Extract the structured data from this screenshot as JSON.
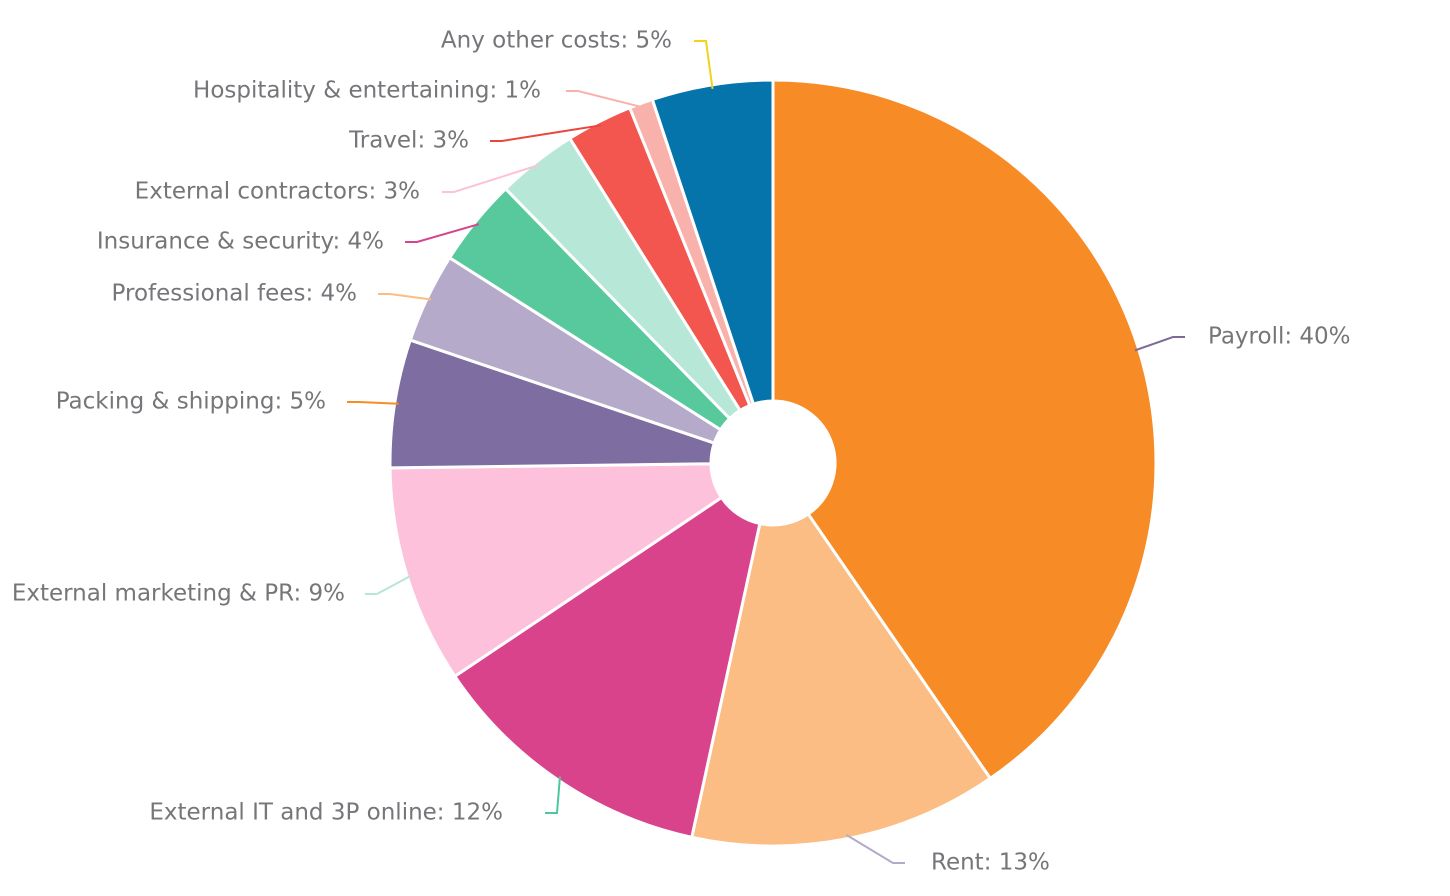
{
  "chart_data": {
    "type": "pie",
    "variant": "donut",
    "title": "",
    "slices": [
      {
        "name": "Payroll",
        "value": 40.4,
        "label": "Payroll: 40%",
        "color": "#f78b25",
        "leader_color": "#7c6a9a"
      },
      {
        "name": "Rent",
        "value": 13.0,
        "label": "Rent: 13%",
        "color": "#fbbd83",
        "leader_color": "#b4aac9"
      },
      {
        "name": "External IT and 3P online",
        "value": 12.2,
        "label": "External IT and 3P online: 12%",
        "color": "#d8438b",
        "leader_color": "#4ec79a"
      },
      {
        "name": "External marketing & PR",
        "value": 9.2,
        "label": "External marketing & PR: 9%",
        "color": "#fdc1db",
        "leader_color": "#b7e6d6"
      },
      {
        "name": "Packing & shipping",
        "value": 5.4,
        "label": "Packing & shipping: 5%",
        "color": "#7e6da0",
        "leader_color": "#f78b25"
      },
      {
        "name": "Professional fees",
        "value": 3.8,
        "label": "Professional fees: 4%",
        "color": "#b6aacb",
        "leader_color": "#fbbd83"
      },
      {
        "name": "Insurance & security",
        "value": 3.7,
        "label": "Insurance & security: 4%",
        "color": "#58c99c",
        "leader_color": "#d8438b"
      },
      {
        "name": "External contractors",
        "value": 3.4,
        "label": "External contractors: 3%",
        "color": "#b7e7d7",
        "leader_color": "#fdc1db"
      },
      {
        "name": "Travel",
        "value": 2.8,
        "label": "Travel: 3%",
        "color": "#f3564f",
        "leader_color": "#e8473d"
      },
      {
        "name": "Hospitality & entertaining",
        "value": 1.0,
        "label": "Hospitality & entertaining: 1%",
        "color": "#f9b1ab",
        "leader_color": "#f9b1ab"
      },
      {
        "name": "Any other costs",
        "value": 5.1,
        "label": "Any other costs: 5%",
        "color": "#0574ab",
        "leader_color": "#f2d21b"
      }
    ]
  }
}
